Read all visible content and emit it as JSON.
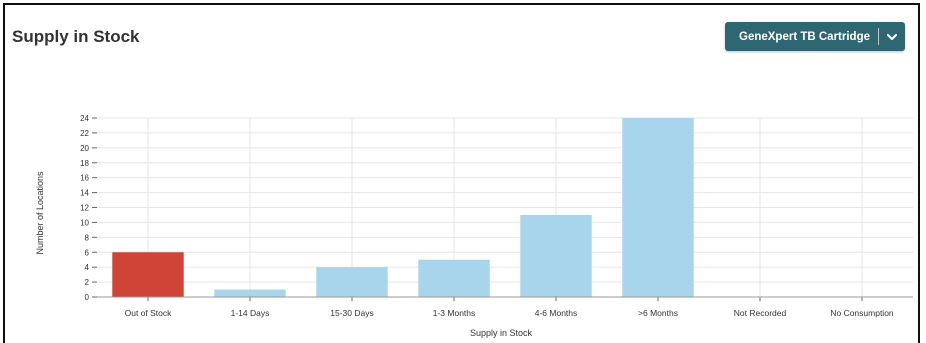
{
  "header": {
    "title": "Supply in Stock",
    "dropdown_selected": "GeneXpert TB Cartridge"
  },
  "colors": {
    "accent": "#2e6671",
    "out_of_stock": "#d04437",
    "bar": "#a8d5ec",
    "grid": "#e6e6e6"
  },
  "chart_data": {
    "type": "bar",
    "categories": [
      "Out of Stock",
      "1-14 Days",
      "15-30 Days",
      "1-3 Months",
      "4-6 Months",
      ">6 Months",
      "Not Recorded",
      "No Consumption"
    ],
    "values": [
      6,
      1,
      4,
      5,
      11,
      24,
      0,
      0
    ],
    "xlabel": "Supply in Stock",
    "ylabel": "Number of Locations",
    "ylim": [
      0,
      24
    ],
    "yticks": [
      0,
      2,
      4,
      6,
      8,
      10,
      12,
      14,
      16,
      18,
      20,
      22,
      24
    ],
    "highlight_category": "Out of Stock",
    "grid": true
  }
}
